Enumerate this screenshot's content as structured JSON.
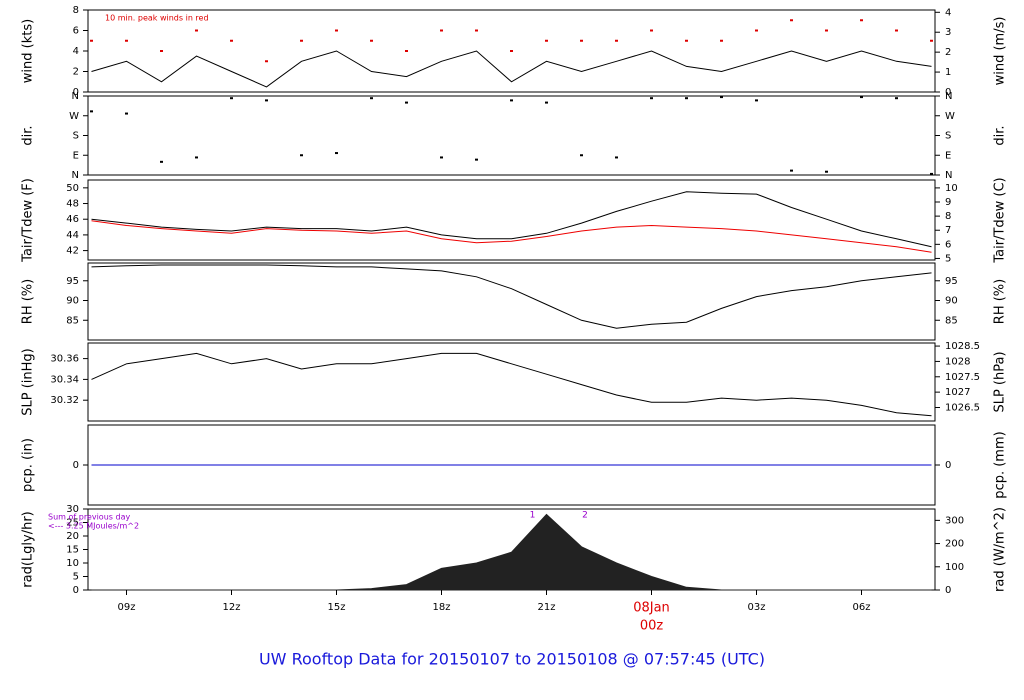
{
  "title": "UW Rooftop Data for 20150107  to  20150108 @ 07:57:45  (UTC)",
  "x_axis": {
    "xlim": [
      7.9,
      32.1
    ],
    "xticks": [
      {
        "value": 9,
        "label": "09z"
      },
      {
        "value": 12,
        "label": "12z"
      },
      {
        "value": 15,
        "label": "15z"
      },
      {
        "value": 18,
        "label": "18z"
      },
      {
        "value": 21,
        "label": "21z"
      },
      {
        "value": 24,
        "label": "00z",
        "date": "08Jan"
      },
      {
        "value": 27,
        "label": "03z"
      },
      {
        "value": 30,
        "label": "06z"
      }
    ]
  },
  "chart_data": [
    {
      "type": "line",
      "ylabel": "wind (kts)",
      "y2label": "wind (m/s)",
      "annotations": [
        {
          "text": "10 min. peak winds in red",
          "color": "#dd0000"
        }
      ],
      "x": [
        8,
        9,
        10,
        11,
        12,
        13,
        14,
        15,
        16,
        17,
        18,
        19,
        20,
        21,
        22,
        23,
        24,
        25,
        26,
        27,
        28,
        29,
        30,
        31,
        32
      ],
      "ylim": [
        0,
        8
      ],
      "yticks": [
        0,
        2,
        4,
        6,
        8
      ],
      "y2lim": [
        0,
        4.115
      ],
      "y2ticks": [
        0,
        1,
        2,
        3,
        4
      ],
      "series": [
        {
          "name": "wind",
          "type": "line",
          "color": "#000000",
          "values": [
            2,
            3,
            1,
            3.5,
            2,
            0.5,
            3,
            4,
            2,
            1.5,
            3,
            4,
            1,
            3,
            2,
            3,
            4,
            2.5,
            2,
            3,
            4,
            3,
            4,
            3,
            2.5
          ]
        },
        {
          "name": "peak",
          "type": "scatter",
          "color": "#dd0000",
          "values": [
            5,
            5,
            4,
            6,
            5,
            3,
            5,
            6,
            5,
            4,
            6,
            6,
            4,
            5,
            5,
            5,
            6,
            5,
            5,
            6,
            7,
            6,
            7,
            6,
            5
          ]
        }
      ]
    },
    {
      "type": "scatter",
      "ylabel": "dir.",
      "y2label": "dir.",
      "x": [
        8,
        9,
        10,
        11,
        12,
        13,
        14,
        15,
        16,
        17,
        18,
        19,
        20,
        21,
        22,
        23,
        24,
        25,
        26,
        27,
        28,
        29,
        30,
        31,
        32
      ],
      "ylim": [
        0,
        360
      ],
      "yticks": [
        {
          "value": 0,
          "label": "N"
        },
        {
          "value": 90,
          "label": "E"
        },
        {
          "value": 180,
          "label": "S"
        },
        {
          "value": 270,
          "label": "W"
        },
        {
          "value": 360,
          "label": "N"
        }
      ],
      "y2lim": [
        0,
        360
      ],
      "y2ticks": [
        {
          "value": 0,
          "label": "N"
        },
        {
          "value": 90,
          "label": "E"
        },
        {
          "value": 180,
          "label": "S"
        },
        {
          "value": 270,
          "label": "W"
        },
        {
          "value": 360,
          "label": "N"
        }
      ],
      "series": [
        {
          "name": "direction",
          "type": "scatter",
          "color": "#000000",
          "values": [
            290,
            280,
            60,
            80,
            350,
            340,
            90,
            100,
            350,
            330,
            80,
            70,
            340,
            330,
            90,
            80,
            350,
            350,
            355,
            340,
            20,
            15,
            355,
            350,
            5
          ]
        }
      ]
    },
    {
      "type": "line",
      "ylabel": "Tair/Tdew (F)",
      "y2label": "Tair/Tdew (C)",
      "x": [
        8,
        9,
        10,
        11,
        12,
        13,
        14,
        15,
        16,
        17,
        18,
        19,
        20,
        21,
        22,
        23,
        24,
        25,
        26,
        27,
        28,
        29,
        30,
        31,
        32
      ],
      "ylim": [
        40.8,
        51
      ],
      "yticks": [
        42,
        44,
        46,
        48,
        50
      ],
      "y2lim": [
        4.89,
        10.56
      ],
      "y2ticks": [
        5,
        6,
        7,
        8,
        9,
        10
      ],
      "series": [
        {
          "name": "Tair",
          "type": "line",
          "color": "#000000",
          "values": [
            46,
            45.5,
            45,
            44.7,
            44.5,
            45,
            44.8,
            44.8,
            44.5,
            45,
            44,
            43.5,
            43.5,
            44.2,
            45.5,
            47,
            48.3,
            49.5,
            49.3,
            49.2,
            47.5,
            46,
            44.5,
            43.5,
            42.5
          ]
        },
        {
          "name": "Tdew",
          "type": "line",
          "color": "#ee0000",
          "values": [
            45.8,
            45.2,
            44.8,
            44.5,
            44.2,
            44.8,
            44.6,
            44.5,
            44.2,
            44.5,
            43.5,
            43,
            43.2,
            43.8,
            44.5,
            45,
            45.2,
            45,
            44.8,
            44.5,
            44,
            43.5,
            43,
            42.5,
            41.8
          ]
        }
      ]
    },
    {
      "type": "line",
      "ylabel": "RH (%)",
      "y2label": "RH (%)",
      "x": [
        8,
        9,
        10,
        11,
        12,
        13,
        14,
        15,
        16,
        17,
        18,
        19,
        20,
        21,
        22,
        23,
        24,
        25,
        26,
        27,
        28,
        29,
        30,
        31,
        32
      ],
      "ylim": [
        80,
        99.5
      ],
      "yticks": [
        85,
        90,
        95
      ],
      "y2lim": [
        80,
        99.5
      ],
      "y2ticks": [
        85,
        90,
        95
      ],
      "series": [
        {
          "name": "RH",
          "type": "line",
          "color": "#000000",
          "values": [
            98.5,
            98.8,
            99,
            99,
            99,
            99,
            98.8,
            98.5,
            98.5,
            98,
            97.5,
            96,
            93,
            89,
            85,
            83,
            84,
            84.5,
            88,
            91,
            92.5,
            93.5,
            95,
            96,
            97
          ]
        }
      ]
    },
    {
      "type": "line",
      "ylabel": "SLP (inHg)",
      "y2label": "SLP (hPa)",
      "x": [
        8,
        9,
        10,
        11,
        12,
        13,
        14,
        15,
        16,
        17,
        18,
        19,
        20,
        21,
        22,
        23,
        24,
        25,
        26,
        27,
        28,
        29,
        30,
        31,
        32
      ],
      "ylim": [
        30.3,
        30.375
      ],
      "yticks": [
        30.32,
        30.34,
        30.36
      ],
      "y2lim": [
        1026.06,
        1028.6
      ],
      "y2ticks": [
        1026.5,
        1027,
        1027.5,
        1028,
        1028.5
      ],
      "series": [
        {
          "name": "SLP",
          "type": "line",
          "color": "#000000",
          "values": [
            30.34,
            30.355,
            30.36,
            30.365,
            30.355,
            30.36,
            30.35,
            30.355,
            30.355,
            30.36,
            30.365,
            30.365,
            30.355,
            30.345,
            30.335,
            30.325,
            30.318,
            30.318,
            30.322,
            30.32,
            30.322,
            30.32,
            30.315,
            30.308,
            30.305
          ]
        }
      ]
    },
    {
      "type": "line",
      "ylabel": "pcp. (in)",
      "y2label": "pcp. (mm)",
      "x": [
        8,
        9,
        10,
        11,
        12,
        13,
        14,
        15,
        16,
        17,
        18,
        19,
        20,
        21,
        22,
        23,
        24,
        25,
        26,
        27,
        28,
        29,
        30,
        31,
        32
      ],
      "ylim": [
        -1,
        1
      ],
      "yticks": [
        0
      ],
      "y2lim": [
        -25.4,
        25.4
      ],
      "y2ticks": [
        0
      ],
      "series": [
        {
          "name": "pcp",
          "type": "line",
          "color": "#0000cc",
          "values": [
            0,
            0,
            0,
            0,
            0,
            0,
            0,
            0,
            0,
            0,
            0,
            0,
            0,
            0,
            0,
            0,
            0,
            0,
            0,
            0,
            0,
            0,
            0,
            0,
            0
          ]
        }
      ]
    },
    {
      "type": "area",
      "ylabel": "rad(Lgly/hr)",
      "y2label": "rad (W/m^2)",
      "annotations": [
        {
          "text": "Sum of previous day",
          "color": "#9900cc"
        },
        {
          "text": "<--- 3.25 MJoules/m^2",
          "color": "#9900cc"
        }
      ],
      "markers": [
        {
          "text": "1",
          "x": 20.6,
          "color": "#9900cc"
        },
        {
          "text": "2",
          "x": 22.1,
          "color": "#9900cc"
        }
      ],
      "x": [
        8,
        9,
        10,
        11,
        12,
        13,
        14,
        15,
        16,
        17,
        18,
        19,
        20,
        21,
        22,
        23,
        24,
        25,
        26,
        27,
        28,
        29,
        30,
        31,
        32
      ],
      "ylim": [
        0,
        30
      ],
      "yticks": [
        0,
        5,
        10,
        15,
        20,
        25,
        30
      ],
      "y2lim": [
        0,
        348.9
      ],
      "y2ticks": [
        0,
        100,
        200,
        300
      ],
      "series": [
        {
          "name": "rad",
          "type": "area",
          "color": "#222222",
          "values": [
            0,
            0,
            0,
            0,
            0,
            0,
            0,
            0,
            0.5,
            2,
            8,
            10,
            14,
            28,
            16,
            10,
            5,
            1,
            0,
            0,
            0,
            0,
            0,
            0,
            0
          ]
        }
      ]
    }
  ]
}
